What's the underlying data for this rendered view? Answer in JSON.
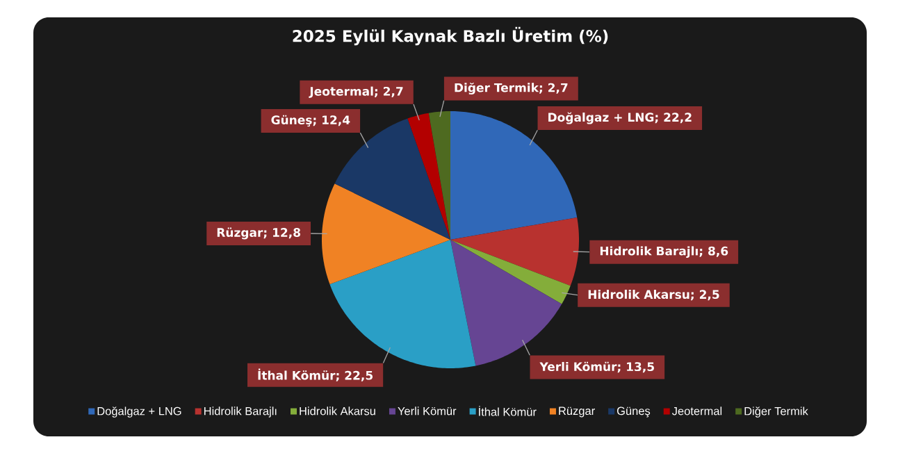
{
  "chart_data": {
    "type": "pie",
    "title": "2025 Eylül Kaynak Bazlı Üretim (%)",
    "categories": [
      "Doğalgaz + LNG",
      "Hidrolik Barajlı",
      "Hidrolik Akarsu",
      "Yerli Kömür",
      "İthal Kömür",
      "Rüzgar",
      "Güneş",
      "Jeotermal",
      "Diğer Termik"
    ],
    "values": [
      22.2,
      8.6,
      2.5,
      13.5,
      22.5,
      12.8,
      12.4,
      2.7,
      2.7
    ],
    "value_labels": [
      "Doğalgaz + LNG; 22,2",
      "Hidrolik Barajlı; 8,6",
      "Hidrolik Akarsu; 2,5",
      "Yerli Kömür; 13,5",
      "İthal Kömür; 22,5",
      "Rüzgar; 12,8",
      "Güneş; 12,4",
      "Jeotermal; 2,7",
      "Diğer Termik; 2,7"
    ],
    "colors": [
      "#3068b8",
      "#b8322f",
      "#84ad3a",
      "#664593",
      "#2a9fc6",
      "#f08224",
      "#1a3866",
      "#b30000",
      "#4e6a20"
    ],
    "legend": "bottom"
  }
}
